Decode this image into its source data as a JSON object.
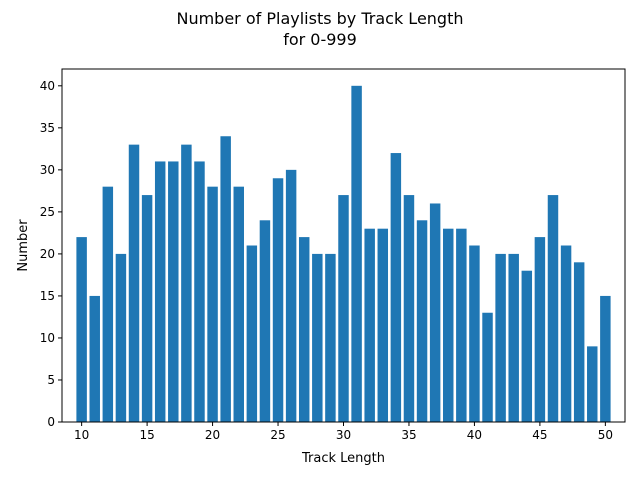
{
  "chart_data": {
    "type": "bar",
    "title_line1": "Number of Playlists by Track Length",
    "title_line2": "for 0-999",
    "xlabel": "Track Length",
    "ylabel": "Number",
    "x": [
      10,
      11,
      12,
      13,
      14,
      15,
      16,
      17,
      18,
      19,
      20,
      21,
      22,
      23,
      24,
      25,
      26,
      27,
      28,
      29,
      30,
      31,
      32,
      33,
      34,
      35,
      36,
      37,
      38,
      39,
      40,
      41,
      42,
      43,
      44,
      45,
      46,
      47,
      48,
      49,
      50
    ],
    "values": [
      22,
      15,
      28,
      20,
      33,
      27,
      31,
      31,
      33,
      31,
      28,
      34,
      28,
      21,
      24,
      29,
      30,
      22,
      20,
      20,
      27,
      40,
      23,
      23,
      32,
      27,
      24,
      26,
      23,
      23,
      21,
      13,
      20,
      20,
      18,
      22,
      27,
      21,
      19,
      9,
      15
    ],
    "xlim": [
      8.5,
      51.5
    ],
    "ylim": [
      0,
      42
    ],
    "xticks": [
      "10",
      "15",
      "20",
      "25",
      "30",
      "35",
      "40",
      "45",
      "50"
    ],
    "yticks": [
      "0",
      "5",
      "10",
      "15",
      "20",
      "25",
      "30",
      "35",
      "40"
    ],
    "bar_color": "#1f77b4",
    "grid": false,
    "legend": "none"
  }
}
